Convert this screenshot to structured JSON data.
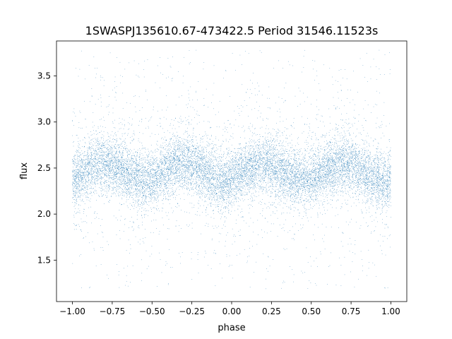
{
  "colors": {
    "points": "#1f77b4",
    "axes": "#000000",
    "background": "#ffffff"
  },
  "chart_data": {
    "type": "scatter",
    "title": "1SWASPJ135610.67-473422.5 Period 31546.11523s",
    "xlabel": "phase",
    "ylabel": "flux",
    "xlim": [
      -1.1,
      1.1
    ],
    "ylim": [
      1.05,
      3.88
    ],
    "grid": false,
    "legend": "none",
    "x_ticks": [
      -1.0,
      -0.75,
      -0.5,
      -0.25,
      0.0,
      0.25,
      0.5,
      0.75,
      1.0
    ],
    "x_tick_labels": [
      "−1.00",
      "−0.75",
      "−0.50",
      "−0.25",
      "0.00",
      "0.25",
      "0.50",
      "0.75",
      "1.00"
    ],
    "y_ticks": [
      1.5,
      2.0,
      2.5,
      3.0,
      3.5
    ],
    "y_tick_labels": [
      "1.5",
      "2.0",
      "2.5",
      "3.0",
      "3.5"
    ],
    "series": [
      {
        "marker_size": 0.6,
        "point_count": 14000,
        "phase_range": [
          -1.0,
          1.0
        ],
        "flux_range": [
          1.18,
          3.78
        ],
        "flux_mean": 2.46,
        "flux_core_spread": 0.15,
        "modulation": {
          "kind": "double-peaked sinusoid, period 0.5 in phase",
          "amplitude": 0.09,
          "maxima_phase": [
            -0.8,
            -0.3,
            0.2,
            0.7
          ],
          "minima_phase": [
            -0.55,
            -0.05,
            0.45,
            0.95
          ]
        },
        "approximate_points": [
          {
            "x": -1.0,
            "y": 2.4
          },
          {
            "x": -0.8,
            "y": 2.55
          },
          {
            "x": -0.55,
            "y": 2.37
          },
          {
            "x": -0.3,
            "y": 2.55
          },
          {
            "x": -0.05,
            "y": 2.37
          },
          {
            "x": 0.2,
            "y": 2.55
          },
          {
            "x": 0.45,
            "y": 2.37
          },
          {
            "x": 0.7,
            "y": 2.55
          },
          {
            "x": 0.95,
            "y": 2.37
          }
        ]
      }
    ]
  }
}
